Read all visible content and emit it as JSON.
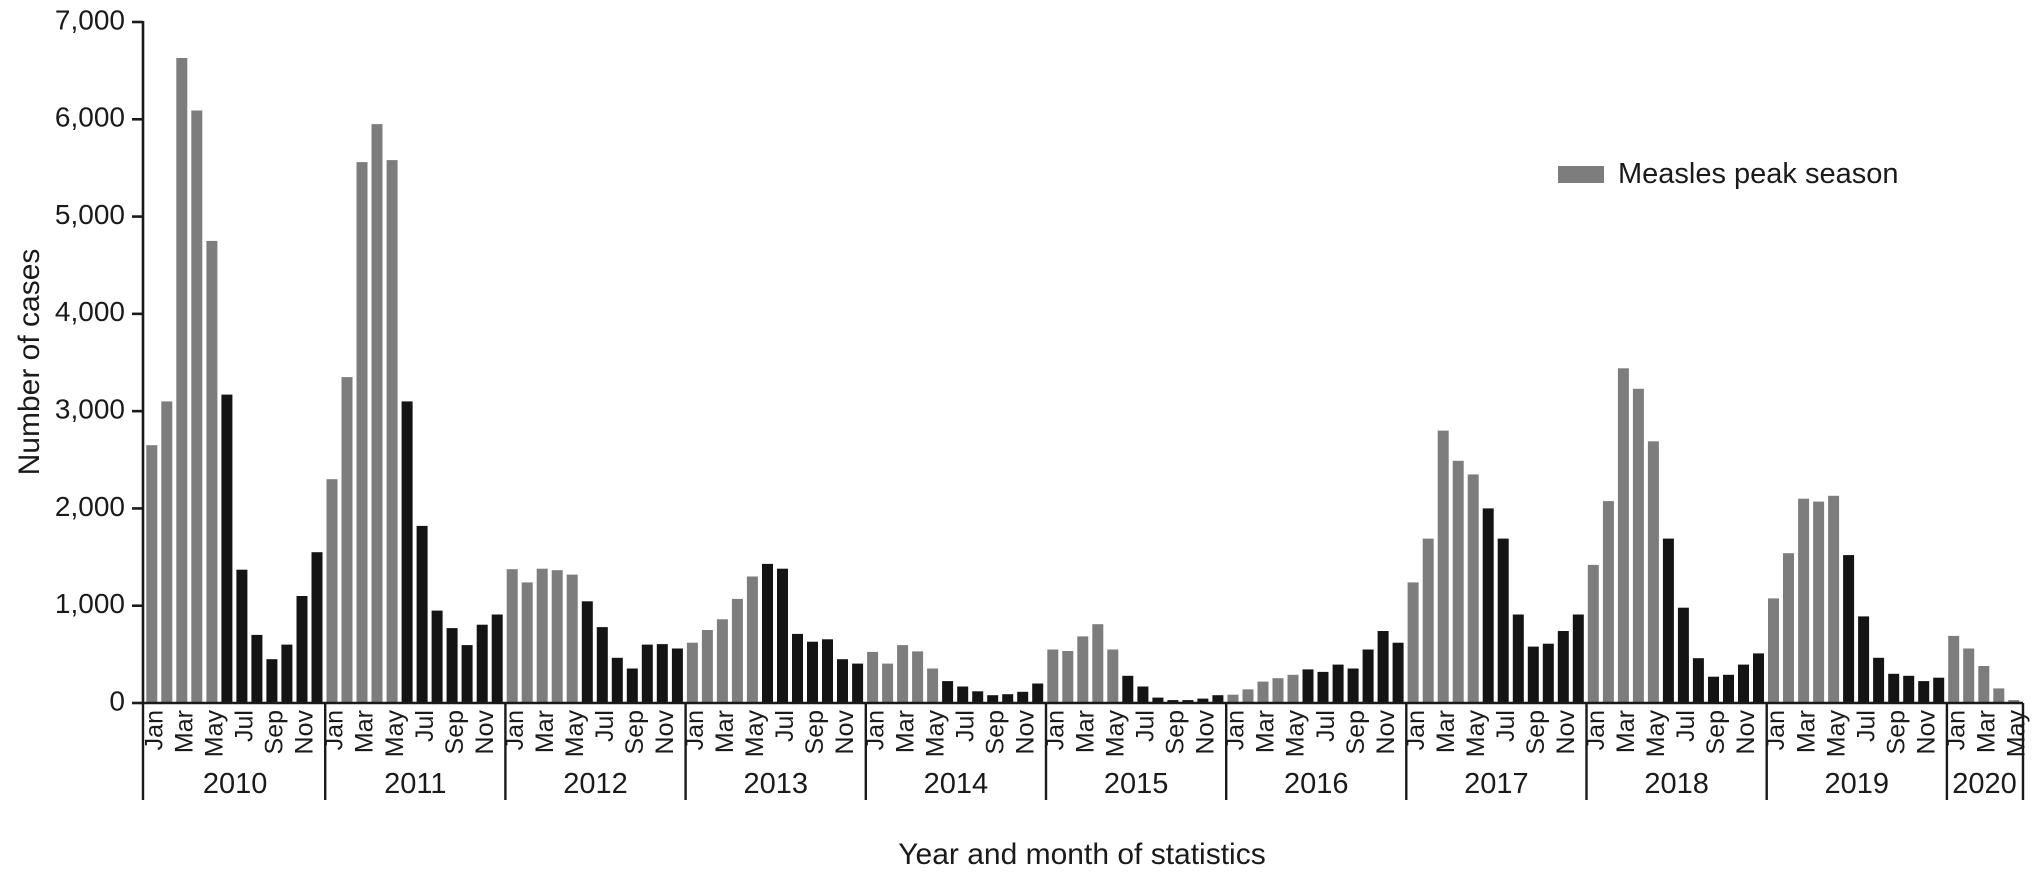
{
  "figure": {
    "background": "#ffffff"
  },
  "legend": {
    "label": "Measles peak season",
    "swatch_color": "#7d7d7d"
  },
  "chart_data": {
    "type": "bar",
    "title": "",
    "ylabel": "Number of cases",
    "xlabel": "Year and month of statistics",
    "ylim": [
      0,
      7000
    ],
    "ytick_step": 1000,
    "ytick_labels": [
      "0",
      "1,000",
      "2,000",
      "3,000",
      "4,000",
      "5,000",
      "6,000",
      "7,000"
    ],
    "month_names": [
      "Jan",
      "Feb",
      "Mar",
      "Apr",
      "May",
      "Jun",
      "Jul",
      "Aug",
      "Sep",
      "Oct",
      "Nov",
      "Dec"
    ],
    "month_tick_labels": [
      "Jan",
      "Mar",
      "May",
      "Jul",
      "Sep",
      "Nov"
    ],
    "peak_season_months": [
      "Jan",
      "Feb",
      "Mar",
      "Apr",
      "May"
    ],
    "legend_position": "upper right",
    "grid": false,
    "colors": {
      "peak": "#7d7d7d",
      "regular": "#141414",
      "axis": "#1a1a1a",
      "text": "#1a1a1a"
    },
    "series": [
      {
        "year": "2010",
        "values": [
          2650,
          3100,
          6630,
          6090,
          4750,
          3170,
          1370,
          700,
          450,
          600,
          1100,
          1550
        ]
      },
      {
        "year": "2011",
        "values": [
          2300,
          3350,
          5560,
          5950,
          5580,
          3100,
          1820,
          950,
          770,
          595,
          805,
          910
        ]
      },
      {
        "year": "2012",
        "values": [
          1375,
          1240,
          1380,
          1365,
          1320,
          1045,
          780,
          465,
          355,
          600,
          605,
          560
        ]
      },
      {
        "year": "2013",
        "values": [
          620,
          750,
          860,
          1070,
          1300,
          1430,
          1380,
          710,
          630,
          655,
          450,
          405
        ]
      },
      {
        "year": "2014",
        "values": [
          525,
          405,
          595,
          530,
          355,
          225,
          170,
          120,
          80,
          90,
          115,
          200
        ]
      },
      {
        "year": "2015",
        "values": [
          550,
          535,
          685,
          810,
          550,
          280,
          170,
          55,
          30,
          30,
          45,
          80
        ]
      },
      {
        "year": "2016",
        "values": [
          85,
          140,
          220,
          255,
          290,
          345,
          320,
          395,
          355,
          550,
          740,
          620
        ]
      },
      {
        "year": "2017",
        "values": [
          1240,
          1690,
          2800,
          2490,
          2350,
          2000,
          1690,
          910,
          580,
          610,
          740,
          910
        ]
      },
      {
        "year": "2018",
        "values": [
          1420,
          2075,
          3440,
          3230,
          2690,
          1690,
          980,
          460,
          270,
          290,
          395,
          510
        ]
      },
      {
        "year": "2019",
        "values": [
          1075,
          1540,
          2100,
          2070,
          2130,
          1520,
          890,
          465,
          300,
          280,
          225,
          260
        ]
      },
      {
        "year": "2020",
        "values": [
          690,
          560,
          380,
          150,
          30
        ]
      }
    ]
  }
}
